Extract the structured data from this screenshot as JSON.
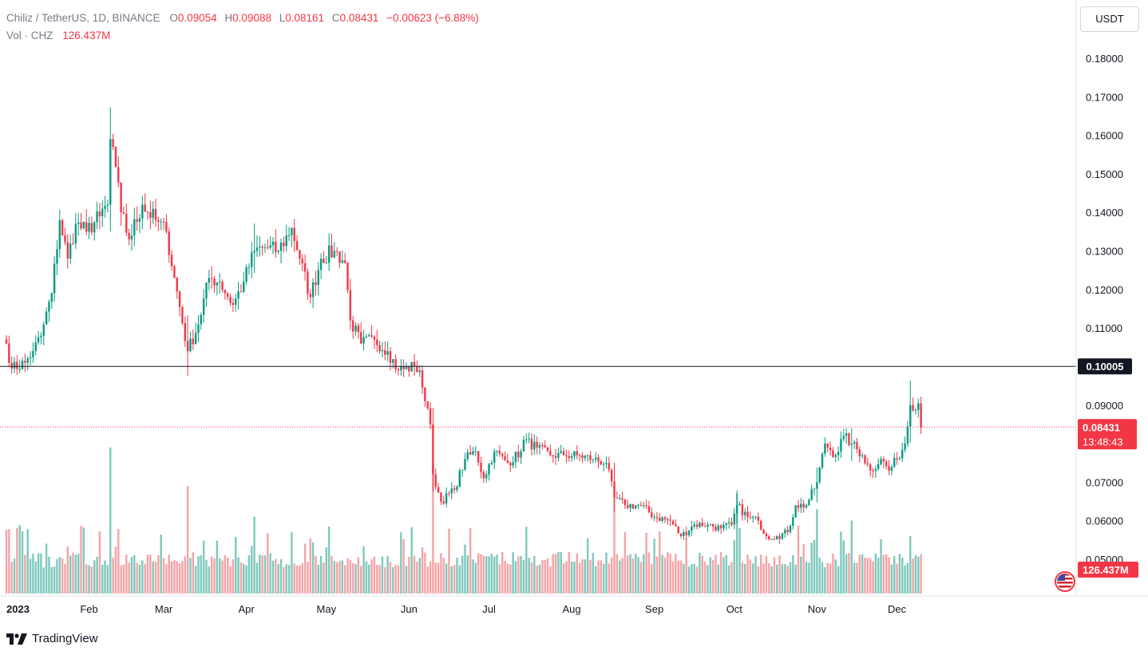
{
  "header": {
    "symbol": "Chiliz / TetherUS, 1D, BINANCE",
    "o_label": "O",
    "o_value": "0.09054",
    "h_label": "H",
    "h_value": "0.09088",
    "l_label": "L",
    "l_value": "0.08161",
    "c_label": "C",
    "c_value": "0.08431",
    "change": "−0.00623 (−6.88%)",
    "vol_label": "Vol · CHZ",
    "vol_value": "126.437M"
  },
  "currency_button": "USDT",
  "price_tag": {
    "value": "0.08431",
    "countdown": "13:48:43"
  },
  "level_tag": "0.10005",
  "volume_tag": "126.437M",
  "branding": "TradingView",
  "colors": {
    "up": "#089981",
    "down": "#f23645",
    "vol_up": "#7ec8bd",
    "vol_down": "#f5a3a6",
    "level": "#131722"
  },
  "chart_data": {
    "type": "candlestick",
    "ylim": [
      0.046,
      0.186
    ],
    "y_ticks": [
      "0.18000",
      "0.17000",
      "0.16000",
      "0.15000",
      "0.14000",
      "0.13000",
      "0.12000",
      "0.11000",
      "0.10000",
      "0.09000",
      "0.08000",
      "0.07000",
      "0.06000",
      "0.05000"
    ],
    "x_ticks": [
      {
        "label": "2023",
        "date": "2023-01-01"
      },
      {
        "label": "Feb",
        "date": "2023-02-01"
      },
      {
        "label": "Mar",
        "date": "2023-03-01"
      },
      {
        "label": "Apr",
        "date": "2023-04-01"
      },
      {
        "label": "May",
        "date": "2023-05-01"
      },
      {
        "label": "Jun",
        "date": "2023-06-01"
      },
      {
        "label": "Jul",
        "date": "2023-07-01"
      },
      {
        "label": "Aug",
        "date": "2023-08-01"
      },
      {
        "label": "Sep",
        "date": "2023-09-01"
      },
      {
        "label": "Oct",
        "date": "2023-10-01"
      },
      {
        "label": "Nov",
        "date": "2023-11-01"
      },
      {
        "label": "Dec",
        "date": "2023-12-01"
      }
    ],
    "horizontal_level": 0.10005,
    "last_close": 0.08431,
    "close_waypoints": [
      [
        "2023-01-01",
        0.106
      ],
      [
        "2023-01-03",
        0.0995
      ],
      [
        "2023-01-08",
        0.101
      ],
      [
        "2023-01-11",
        0.104
      ],
      [
        "2023-01-14",
        0.108
      ],
      [
        "2023-01-18",
        0.119
      ],
      [
        "2023-01-21",
        0.138
      ],
      [
        "2023-01-24",
        0.128
      ],
      [
        "2023-01-27",
        0.137
      ],
      [
        "2023-01-31",
        0.135
      ],
      [
        "2023-02-05",
        0.139
      ],
      [
        "2023-02-08",
        0.142
      ],
      [
        "2023-02-09",
        0.159
      ],
      [
        "2023-02-10",
        0.157
      ],
      [
        "2023-02-13",
        0.14
      ],
      [
        "2023-02-16",
        0.133
      ],
      [
        "2023-02-21",
        0.142
      ],
      [
        "2023-02-26",
        0.138
      ],
      [
        "2023-03-02",
        0.135
      ],
      [
        "2023-03-05",
        0.123
      ],
      [
        "2023-03-10",
        0.104
      ],
      [
        "2023-03-14",
        0.111
      ],
      [
        "2023-03-18",
        0.123
      ],
      [
        "2023-03-22",
        0.122
      ],
      [
        "2023-03-27",
        0.116
      ],
      [
        "2023-03-31",
        0.122
      ],
      [
        "2023-04-04",
        0.13
      ],
      [
        "2023-04-08",
        0.131
      ],
      [
        "2023-04-13",
        0.13
      ],
      [
        "2023-04-18",
        0.136
      ],
      [
        "2023-04-21",
        0.128
      ],
      [
        "2023-04-25",
        0.118
      ],
      [
        "2023-04-29",
        0.128
      ],
      [
        "2023-05-04",
        0.13
      ],
      [
        "2023-05-08",
        0.127
      ],
      [
        "2023-05-10",
        0.112
      ],
      [
        "2023-05-14",
        0.106
      ],
      [
        "2023-05-19",
        0.107
      ],
      [
        "2023-05-24",
        0.104
      ],
      [
        "2023-05-28",
        0.099
      ],
      [
        "2023-06-03",
        0.1
      ],
      [
        "2023-06-05",
        0.099
      ],
      [
        "2023-06-07",
        0.091
      ],
      [
        "2023-06-09",
        0.085
      ],
      [
        "2023-06-10",
        0.072
      ],
      [
        "2023-06-13",
        0.065
      ],
      [
        "2023-06-18",
        0.068
      ],
      [
        "2023-06-22",
        0.076
      ],
      [
        "2023-06-26",
        0.078
      ],
      [
        "2023-06-29",
        0.071
      ],
      [
        "2023-07-03",
        0.078
      ],
      [
        "2023-07-08",
        0.075
      ],
      [
        "2023-07-13",
        0.078
      ],
      [
        "2023-07-14",
        0.081
      ],
      [
        "2023-07-19",
        0.079
      ],
      [
        "2023-07-24",
        0.077
      ],
      [
        "2023-07-29",
        0.077
      ],
      [
        "2023-08-03",
        0.077
      ],
      [
        "2023-08-09",
        0.076
      ],
      [
        "2023-08-14",
        0.075
      ],
      [
        "2023-08-17",
        0.066
      ],
      [
        "2023-08-21",
        0.064
      ],
      [
        "2023-08-27",
        0.064
      ],
      [
        "2023-09-01",
        0.061
      ],
      [
        "2023-09-07",
        0.06
      ],
      [
        "2023-09-11",
        0.056
      ],
      [
        "2023-09-16",
        0.059
      ],
      [
        "2023-09-21",
        0.059
      ],
      [
        "2023-09-26",
        0.058
      ],
      [
        "2023-09-30",
        0.059
      ],
      [
        "2023-10-02",
        0.064
      ],
      [
        "2023-10-06",
        0.061
      ],
      [
        "2023-10-10",
        0.06
      ],
      [
        "2023-10-13",
        0.056
      ],
      [
        "2023-10-17",
        0.056
      ],
      [
        "2023-10-21",
        0.057
      ],
      [
        "2023-10-24",
        0.064
      ],
      [
        "2023-10-28",
        0.064
      ],
      [
        "2023-11-01",
        0.07
      ],
      [
        "2023-11-04",
        0.08
      ],
      [
        "2023-11-08",
        0.077
      ],
      [
        "2023-11-11",
        0.082
      ],
      [
        "2023-11-14",
        0.08
      ],
      [
        "2023-11-18",
        0.077
      ],
      [
        "2023-11-21",
        0.073
      ],
      [
        "2023-11-25",
        0.076
      ],
      [
        "2023-11-28",
        0.073
      ],
      [
        "2023-12-01",
        0.076
      ],
      [
        "2023-12-04",
        0.08
      ],
      [
        "2023-12-06",
        0.09
      ],
      [
        "2023-12-09",
        0.0905
      ],
      [
        "2023-12-10",
        0.0843
      ]
    ],
    "volume_spikes": [
      [
        "2023-02-09",
        0.079
      ],
      [
        "2023-03-10",
        0.069
      ],
      [
        "2023-04-04",
        0.061
      ],
      [
        "2023-06-10",
        0.075
      ],
      [
        "2023-08-17",
        0.066
      ],
      [
        "2023-10-02",
        0.067
      ],
      [
        "2023-11-01",
        0.063
      ],
      [
        "2023-11-14",
        0.06
      ],
      [
        "2023-12-06",
        0.056
      ]
    ]
  }
}
